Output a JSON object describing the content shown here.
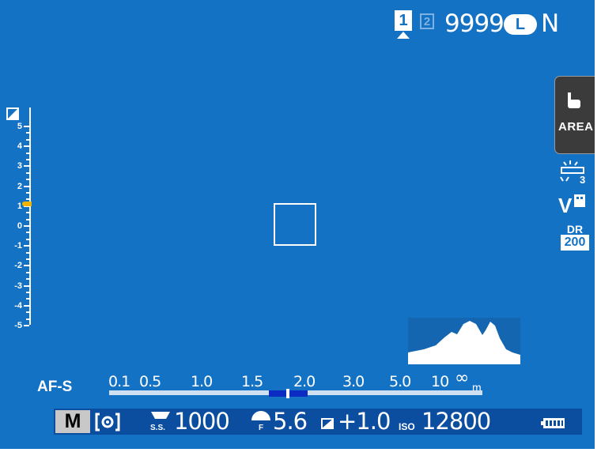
{
  "status": {
    "card_slot_active": "1",
    "card_slot_inactive": "2",
    "shots_remaining": "9999",
    "image_size": "L",
    "image_quality": "N"
  },
  "touch": {
    "area_label": "AREA"
  },
  "side_icons": [
    "continuous-shooting-icon",
    "film-simulation-icon",
    "dynamic-range-icon"
  ],
  "side_text": {
    "film_sim": "V",
    "dr_label": "DR",
    "dr_value": "200"
  },
  "exposure_scale": {
    "labels": [
      "5",
      "4",
      "3",
      "2",
      "1",
      "0",
      "-1",
      "-2",
      "-3",
      "-4",
      "-5"
    ],
    "indicator": 1
  },
  "focus_mode": "AF-S",
  "distance_scale": {
    "labels": [
      "0.1",
      "0.5",
      "1.0",
      "1.5",
      "2.0",
      "3.0",
      "5.0",
      "10",
      "∞"
    ],
    "unit": "m"
  },
  "exposure_info": {
    "mode": "M",
    "shutter_label": "S.S.",
    "shutter_speed": "1000",
    "aperture_label": "F",
    "aperture": "5.6",
    "exp_comp": "+1.0",
    "iso_label": "ISO",
    "iso": "12800"
  },
  "colors": {
    "background": "#1472c4",
    "dof_bar": "#0b2bc2",
    "indicator": "#f0b400",
    "info_bar": "#0b4ea0"
  }
}
